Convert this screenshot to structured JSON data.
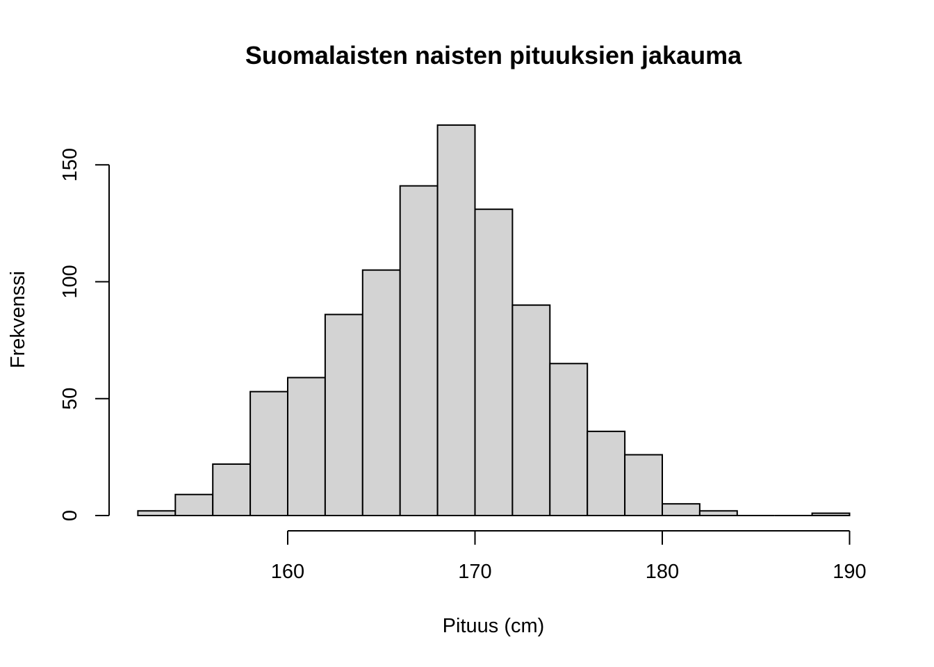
{
  "chart_data": {
    "type": "bar",
    "title": "Suomalaisten naisten pituuksien jakauma",
    "xlabel": "Pituus (cm)",
    "ylabel": "Frekvenssi",
    "bin_width": 2,
    "bins": [
      {
        "start": 152,
        "end": 154,
        "count": 2
      },
      {
        "start": 154,
        "end": 156,
        "count": 9
      },
      {
        "start": 156,
        "end": 158,
        "count": 22
      },
      {
        "start": 158,
        "end": 160,
        "count": 53
      },
      {
        "start": 160,
        "end": 162,
        "count": 59
      },
      {
        "start": 162,
        "end": 164,
        "count": 86
      },
      {
        "start": 164,
        "end": 166,
        "count": 105
      },
      {
        "start": 166,
        "end": 168,
        "count": 141
      },
      {
        "start": 168,
        "end": 170,
        "count": 167
      },
      {
        "start": 170,
        "end": 172,
        "count": 131
      },
      {
        "start": 172,
        "end": 174,
        "count": 90
      },
      {
        "start": 174,
        "end": 176,
        "count": 65
      },
      {
        "start": 176,
        "end": 178,
        "count": 36
      },
      {
        "start": 178,
        "end": 180,
        "count": 26
      },
      {
        "start": 180,
        "end": 182,
        "count": 5
      },
      {
        "start": 182,
        "end": 184,
        "count": 2
      },
      {
        "start": 184,
        "end": 186,
        "count": 0
      },
      {
        "start": 186,
        "end": 188,
        "count": 0
      },
      {
        "start": 188,
        "end": 190,
        "count": 1
      }
    ],
    "xlim": [
      152,
      190
    ],
    "ylim": [
      0,
      167
    ],
    "x_ticks": [
      160,
      170,
      180,
      190
    ],
    "y_ticks": [
      0,
      50,
      100,
      150
    ],
    "grid": false,
    "legend": "none",
    "colors": {
      "bar_fill": "#d3d3d3",
      "bar_stroke": "#000000"
    }
  }
}
